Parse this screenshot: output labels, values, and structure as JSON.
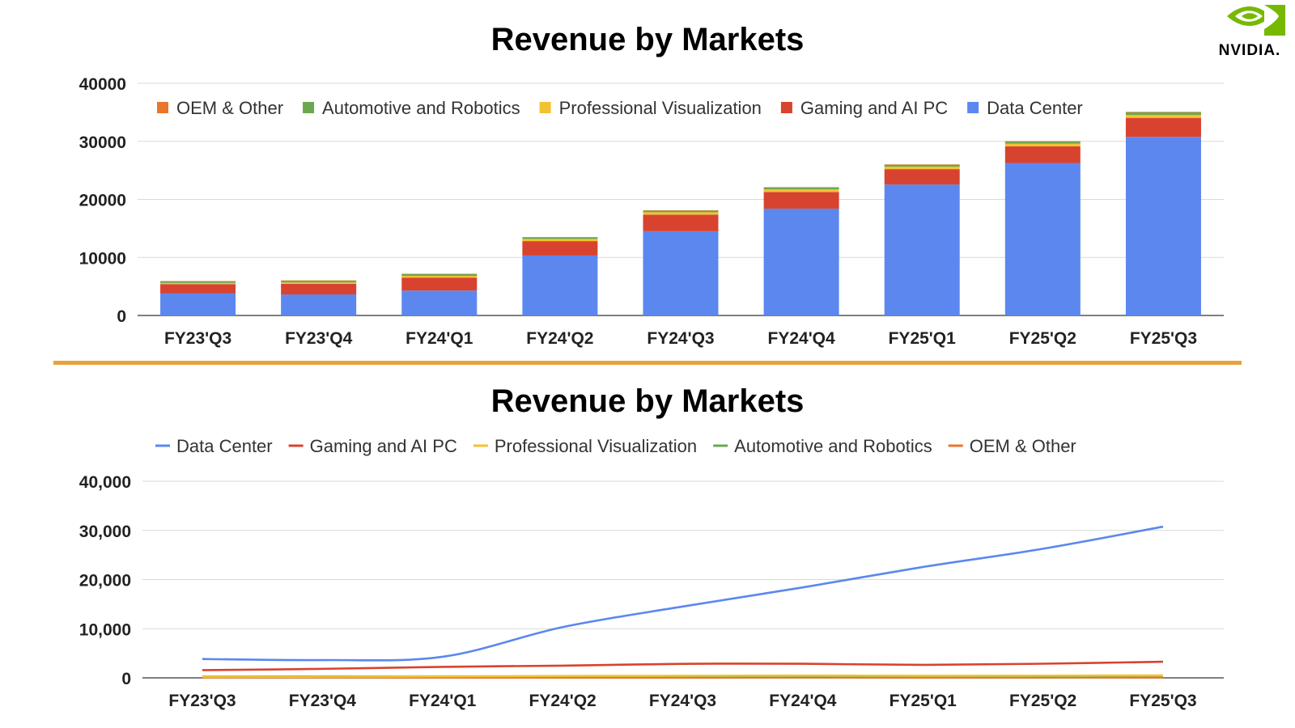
{
  "logo": {
    "text": "NVIDIA.",
    "color": "#76b900"
  },
  "divider_color": "#e8a33c",
  "chart_data": [
    {
      "type": "bar",
      "stacked": true,
      "title": "Revenue by Markets",
      "categories": [
        "FY23'Q3",
        "FY23'Q4",
        "FY24'Q1",
        "FY24'Q2",
        "FY24'Q3",
        "FY24'Q4",
        "FY25'Q1",
        "FY25'Q2",
        "FY25'Q3"
      ],
      "series": [
        {
          "name": "Data Center",
          "color": "#5b87ef",
          "values": [
            3833,
            3616,
            4284,
            10323,
            14514,
            18404,
            22563,
            26272,
            30771
          ]
        },
        {
          "name": "Gaming and AI PC",
          "color": "#d8432f",
          "values": [
            1574,
            1831,
            2240,
            2486,
            2856,
            2865,
            2647,
            2880,
            3279
          ]
        },
        {
          "name": "Professional Visualization",
          "color": "#f3c230",
          "values": [
            200,
            226,
            295,
            379,
            416,
            463,
            427,
            454,
            486
          ]
        },
        {
          "name": "Automotive and Robotics",
          "color": "#6aa84f",
          "values": [
            251,
            294,
            296,
            253,
            261,
            281,
            329,
            346,
            449
          ]
        },
        {
          "name": "OEM & Other",
          "color": "#e8762c",
          "values": [
            73,
            84,
            77,
            66,
            73,
            90,
            78,
            88,
            97
          ]
        }
      ],
      "legend_order": [
        "OEM & Other",
        "Automotive and Robotics",
        "Professional Visualization",
        "Gaming and AI PC",
        "Data Center"
      ],
      "yticks": [
        "0",
        "10000",
        "20000",
        "30000",
        "40000"
      ],
      "ylim": [
        0,
        40000
      ],
      "grid": true,
      "legend": "top"
    },
    {
      "type": "line",
      "title": "Revenue by Markets",
      "categories": [
        "FY23'Q3",
        "FY23'Q4",
        "FY24'Q1",
        "FY24'Q2",
        "FY24'Q3",
        "FY24'Q4",
        "FY25'Q1",
        "FY25'Q2",
        "FY25'Q3"
      ],
      "series": [
        {
          "name": "Data Center",
          "color": "#5b87ef",
          "values": [
            3833,
            3616,
            4284,
            10323,
            14514,
            18404,
            22563,
            26272,
            30771
          ]
        },
        {
          "name": "Gaming and AI PC",
          "color": "#d8432f",
          "values": [
            1574,
            1831,
            2240,
            2486,
            2856,
            2865,
            2647,
            2880,
            3279
          ]
        },
        {
          "name": "Professional Visualization",
          "color": "#f3c230",
          "values": [
            200,
            226,
            295,
            379,
            416,
            463,
            427,
            454,
            486
          ]
        },
        {
          "name": "Automotive and Robotics",
          "color": "#6aa84f",
          "values": [
            251,
            294,
            296,
            253,
            261,
            281,
            329,
            346,
            449
          ]
        },
        {
          "name": "OEM & Other",
          "color": "#e8762c",
          "values": [
            73,
            84,
            77,
            66,
            73,
            90,
            78,
            88,
            97
          ]
        }
      ],
      "legend_order": [
        "Data Center",
        "Gaming and AI PC",
        "Professional Visualization",
        "Automotive and Robotics",
        "OEM & Other"
      ],
      "yticks": [
        "0",
        "10,000",
        "20,000",
        "30,000",
        "40,000"
      ],
      "ylim": [
        0,
        40000
      ],
      "grid": true,
      "legend": "top"
    }
  ]
}
